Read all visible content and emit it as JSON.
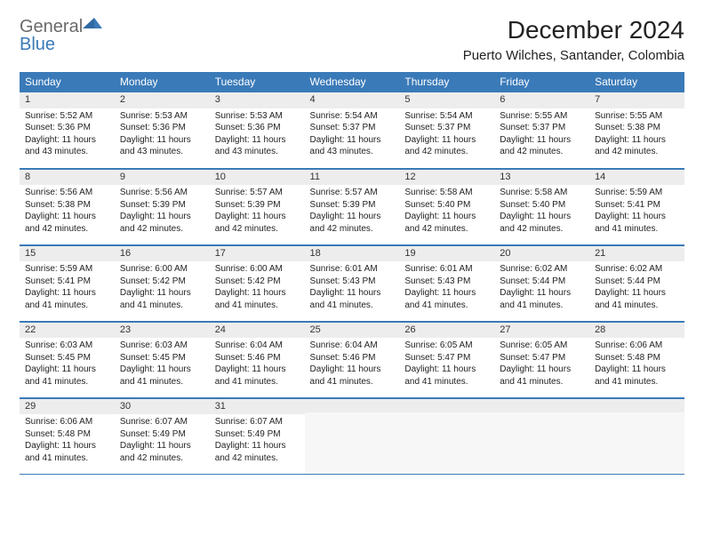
{
  "brand": {
    "text1": "General",
    "text2": "Blue"
  },
  "title": "December 2024",
  "location": "Puerto Wilches, Santander, Colombia",
  "colors": {
    "header_bg": "#3a7ab8",
    "header_fg": "#ffffff",
    "daynum_bg": "#ededed",
    "border": "#3a7ab8",
    "logo_gray": "#6a6a6a",
    "logo_blue": "#3a7ab8",
    "text": "#222222",
    "empty_fill": "#f7f7f7"
  },
  "typography": {
    "title_fontsize_pt": 21,
    "location_fontsize_pt": 11,
    "header_fontsize_pt": 9,
    "cell_fontsize_pt": 7.5
  },
  "dow": [
    "Sunday",
    "Monday",
    "Tuesday",
    "Wednesday",
    "Thursday",
    "Friday",
    "Saturday"
  ],
  "weeks": [
    [
      {
        "n": "1",
        "sr": "Sunrise: 5:52 AM",
        "ss": "Sunset: 5:36 PM",
        "dl1": "Daylight: 11 hours",
        "dl2": "and 43 minutes."
      },
      {
        "n": "2",
        "sr": "Sunrise: 5:53 AM",
        "ss": "Sunset: 5:36 PM",
        "dl1": "Daylight: 11 hours",
        "dl2": "and 43 minutes."
      },
      {
        "n": "3",
        "sr": "Sunrise: 5:53 AM",
        "ss": "Sunset: 5:36 PM",
        "dl1": "Daylight: 11 hours",
        "dl2": "and 43 minutes."
      },
      {
        "n": "4",
        "sr": "Sunrise: 5:54 AM",
        "ss": "Sunset: 5:37 PM",
        "dl1": "Daylight: 11 hours",
        "dl2": "and 43 minutes."
      },
      {
        "n": "5",
        "sr": "Sunrise: 5:54 AM",
        "ss": "Sunset: 5:37 PM",
        "dl1": "Daylight: 11 hours",
        "dl2": "and 42 minutes."
      },
      {
        "n": "6",
        "sr": "Sunrise: 5:55 AM",
        "ss": "Sunset: 5:37 PM",
        "dl1": "Daylight: 11 hours",
        "dl2": "and 42 minutes."
      },
      {
        "n": "7",
        "sr": "Sunrise: 5:55 AM",
        "ss": "Sunset: 5:38 PM",
        "dl1": "Daylight: 11 hours",
        "dl2": "and 42 minutes."
      }
    ],
    [
      {
        "n": "8",
        "sr": "Sunrise: 5:56 AM",
        "ss": "Sunset: 5:38 PM",
        "dl1": "Daylight: 11 hours",
        "dl2": "and 42 minutes."
      },
      {
        "n": "9",
        "sr": "Sunrise: 5:56 AM",
        "ss": "Sunset: 5:39 PM",
        "dl1": "Daylight: 11 hours",
        "dl2": "and 42 minutes."
      },
      {
        "n": "10",
        "sr": "Sunrise: 5:57 AM",
        "ss": "Sunset: 5:39 PM",
        "dl1": "Daylight: 11 hours",
        "dl2": "and 42 minutes."
      },
      {
        "n": "11",
        "sr": "Sunrise: 5:57 AM",
        "ss": "Sunset: 5:39 PM",
        "dl1": "Daylight: 11 hours",
        "dl2": "and 42 minutes."
      },
      {
        "n": "12",
        "sr": "Sunrise: 5:58 AM",
        "ss": "Sunset: 5:40 PM",
        "dl1": "Daylight: 11 hours",
        "dl2": "and 42 minutes."
      },
      {
        "n": "13",
        "sr": "Sunrise: 5:58 AM",
        "ss": "Sunset: 5:40 PM",
        "dl1": "Daylight: 11 hours",
        "dl2": "and 42 minutes."
      },
      {
        "n": "14",
        "sr": "Sunrise: 5:59 AM",
        "ss": "Sunset: 5:41 PM",
        "dl1": "Daylight: 11 hours",
        "dl2": "and 41 minutes."
      }
    ],
    [
      {
        "n": "15",
        "sr": "Sunrise: 5:59 AM",
        "ss": "Sunset: 5:41 PM",
        "dl1": "Daylight: 11 hours",
        "dl2": "and 41 minutes."
      },
      {
        "n": "16",
        "sr": "Sunrise: 6:00 AM",
        "ss": "Sunset: 5:42 PM",
        "dl1": "Daylight: 11 hours",
        "dl2": "and 41 minutes."
      },
      {
        "n": "17",
        "sr": "Sunrise: 6:00 AM",
        "ss": "Sunset: 5:42 PM",
        "dl1": "Daylight: 11 hours",
        "dl2": "and 41 minutes."
      },
      {
        "n": "18",
        "sr": "Sunrise: 6:01 AM",
        "ss": "Sunset: 5:43 PM",
        "dl1": "Daylight: 11 hours",
        "dl2": "and 41 minutes."
      },
      {
        "n": "19",
        "sr": "Sunrise: 6:01 AM",
        "ss": "Sunset: 5:43 PM",
        "dl1": "Daylight: 11 hours",
        "dl2": "and 41 minutes."
      },
      {
        "n": "20",
        "sr": "Sunrise: 6:02 AM",
        "ss": "Sunset: 5:44 PM",
        "dl1": "Daylight: 11 hours",
        "dl2": "and 41 minutes."
      },
      {
        "n": "21",
        "sr": "Sunrise: 6:02 AM",
        "ss": "Sunset: 5:44 PM",
        "dl1": "Daylight: 11 hours",
        "dl2": "and 41 minutes."
      }
    ],
    [
      {
        "n": "22",
        "sr": "Sunrise: 6:03 AM",
        "ss": "Sunset: 5:45 PM",
        "dl1": "Daylight: 11 hours",
        "dl2": "and 41 minutes."
      },
      {
        "n": "23",
        "sr": "Sunrise: 6:03 AM",
        "ss": "Sunset: 5:45 PM",
        "dl1": "Daylight: 11 hours",
        "dl2": "and 41 minutes."
      },
      {
        "n": "24",
        "sr": "Sunrise: 6:04 AM",
        "ss": "Sunset: 5:46 PM",
        "dl1": "Daylight: 11 hours",
        "dl2": "and 41 minutes."
      },
      {
        "n": "25",
        "sr": "Sunrise: 6:04 AM",
        "ss": "Sunset: 5:46 PM",
        "dl1": "Daylight: 11 hours",
        "dl2": "and 41 minutes."
      },
      {
        "n": "26",
        "sr": "Sunrise: 6:05 AM",
        "ss": "Sunset: 5:47 PM",
        "dl1": "Daylight: 11 hours",
        "dl2": "and 41 minutes."
      },
      {
        "n": "27",
        "sr": "Sunrise: 6:05 AM",
        "ss": "Sunset: 5:47 PM",
        "dl1": "Daylight: 11 hours",
        "dl2": "and 41 minutes."
      },
      {
        "n": "28",
        "sr": "Sunrise: 6:06 AM",
        "ss": "Sunset: 5:48 PM",
        "dl1": "Daylight: 11 hours",
        "dl2": "and 41 minutes."
      }
    ],
    [
      {
        "n": "29",
        "sr": "Sunrise: 6:06 AM",
        "ss": "Sunset: 5:48 PM",
        "dl1": "Daylight: 11 hours",
        "dl2": "and 41 minutes."
      },
      {
        "n": "30",
        "sr": "Sunrise: 6:07 AM",
        "ss": "Sunset: 5:49 PM",
        "dl1": "Daylight: 11 hours",
        "dl2": "and 42 minutes."
      },
      {
        "n": "31",
        "sr": "Sunrise: 6:07 AM",
        "ss": "Sunset: 5:49 PM",
        "dl1": "Daylight: 11 hours",
        "dl2": "and 42 minutes."
      },
      {
        "empty": true
      },
      {
        "empty": true
      },
      {
        "empty": true
      },
      {
        "empty": true
      }
    ]
  ]
}
